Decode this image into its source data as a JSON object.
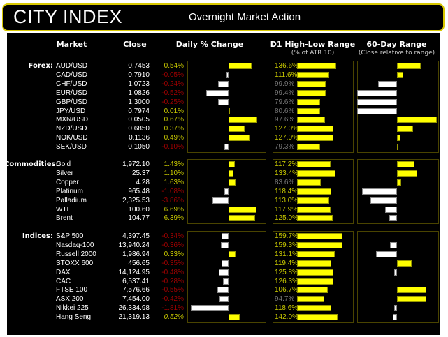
{
  "header": {
    "logo": "CITY INDEX",
    "title": "Overnight Market Action"
  },
  "columns": {
    "market": "Market",
    "close": "Close",
    "daily": "Daily % Change",
    "d1": "D1 High-Low Range",
    "d1_sub": "(% of ATR 10)",
    "range60": "60-Day Range",
    "range60_sub": "(Close relative to range)"
  },
  "colors": {
    "positive": "#c8c800",
    "negative": "#a00000",
    "bar_yellow": "#ffff00",
    "bar_white": "#ffffff",
    "atr_high": "#c8c800",
    "atr_low": "#777777"
  },
  "sections": [
    {
      "label": "Forex:",
      "rows": [
        {
          "market": "AUD/USD",
          "close": "0.7453",
          "pct": "0.54%",
          "v": 0.54,
          "atr": "136.6%",
          "a": 136.6,
          "r60": 0.59
        },
        {
          "market": "CAD/USD",
          "close": "0.7910",
          "pct": "-0.05%",
          "v": -0.05,
          "atr": "111.6%",
          "a": 111.6,
          "r60": 0.16
        },
        {
          "market": "CHF/USD",
          "close": "1.0723",
          "pct": "-0.24%",
          "v": -0.24,
          "atr": "99.9%",
          "a": 99.9,
          "r60": -0.47
        },
        {
          "market": "EUR/USD",
          "close": "1.0826",
          "pct": "-0.52%",
          "v": -0.52,
          "atr": "99.4%",
          "a": 99.4,
          "r60": -1.0
        },
        {
          "market": "GBP/USD",
          "close": "1.3000",
          "pct": "-0.25%",
          "v": -0.25,
          "atr": "79.6%",
          "a": 79.6,
          "r60": -1.0
        },
        {
          "market": "JPY/USD",
          "close": "0.7974",
          "pct": "0.01%",
          "v": 0.01,
          "atr": "80.6%",
          "a": 80.6,
          "r60": -1.0
        },
        {
          "market": "MXN/USD",
          "close": "0.0505",
          "pct": "0.67%",
          "v": 0.67,
          "atr": "97.6%",
          "a": 97.6,
          "r60": 1.0
        },
        {
          "market": "NZD/USD",
          "close": "0.6850",
          "pct": "0.37%",
          "v": 0.37,
          "atr": "127.0%",
          "a": 127.0,
          "r60": 0.41
        },
        {
          "market": "NOK/USD",
          "close": "0.1136",
          "pct": "0.49%",
          "v": 0.49,
          "atr": "127.0%",
          "a": 127.0,
          "r60": 0.09
        },
        {
          "market": "SEK/USD",
          "close": "0.1050",
          "pct": "-0.10%",
          "v": -0.1,
          "atr": "79.3%",
          "a": 79.3,
          "r60": 0.02
        }
      ]
    },
    {
      "label": "Commodities:",
      "rows": [
        {
          "market": "Gold",
          "close": "1,972.10",
          "pct": "1.43%",
          "v": 1.43,
          "atr": "117.2%",
          "a": 117.2,
          "r60": 0.44
        },
        {
          "market": "Silver",
          "close": "25.37",
          "pct": "1.10%",
          "v": 1.1,
          "atr": "133.4%",
          "a": 133.4,
          "r60": 0.5
        },
        {
          "market": "Copper",
          "close": "4.28",
          "pct": "1.63%",
          "v": 1.63,
          "atr": "83.6%",
          "a": 83.6,
          "r60": 0.1
        },
        {
          "market": "Platinum",
          "close": "965.48",
          "pct": "-1.08%",
          "v": -1.08,
          "atr": "118.4%",
          "a": 118.4,
          "r60": -0.87
        },
        {
          "market": "Palladium",
          "close": "2,325.53",
          "pct": "-3.86%",
          "v": -3.86,
          "atr": "113.0%",
          "a": 113.0,
          "r60": -0.66
        },
        {
          "market": "WTI",
          "close": "100.60",
          "pct": "6.69%",
          "v": 6.69,
          "atr": "117.9%",
          "a": 117.9,
          "r60": -0.3
        },
        {
          "market": "Brent",
          "close": "104.77",
          "pct": "6.39%",
          "v": 6.39,
          "atr": "125.0%",
          "a": 125.0,
          "r60": -0.19
        }
      ]
    },
    {
      "label": "Indices:",
      "rows": [
        {
          "market": "S&P 500",
          "close": "4,397.45",
          "pct": "-0.34%",
          "v": -0.34,
          "atr": "159.7%",
          "a": 159.7,
          "r60": 0
        },
        {
          "market": "Nasdaq-100",
          "close": "13,940.24",
          "pct": "-0.36%",
          "v": -0.36,
          "atr": "159.3%",
          "a": 159.3,
          "r60": -0.18
        },
        {
          "market": "Russell 2000",
          "close": "1,986.94",
          "pct": "0.33%",
          "v": 0.33,
          "atr": "131.1%",
          "a": 131.1,
          "r60": -0.52
        },
        {
          "market": "STOXX 600",
          "close": "456.65",
          "pct": "-0.35%",
          "v": -0.35,
          "atr": "119.4%",
          "a": 119.4,
          "r60": 0.36
        },
        {
          "market": "DAX",
          "close": "14,124.95",
          "pct": "-0.48%",
          "v": -0.48,
          "atr": "125.8%",
          "a": 125.8,
          "r60": -0.07
        },
        {
          "market": "CAC",
          "close": "6,537.41",
          "pct": "-0.28%",
          "v": -0.28,
          "atr": "126.3%",
          "a": 126.3,
          "r60": 0
        },
        {
          "market": "FTSE 100",
          "close": "7,576.66",
          "pct": "-0.55%",
          "v": -0.55,
          "atr": "106.7%",
          "a": 106.7,
          "r60": 0.73
        },
        {
          "market": "ASX 200",
          "close": "7,454.00",
          "pct": "-0.42%",
          "v": -0.42,
          "atr": "94.7%",
          "a": 94.7,
          "r60": 0.73
        },
        {
          "market": "Nikkei 225",
          "close": "26,334.98",
          "pct": "-1.81%",
          "v": -1.81,
          "atr": "118.6%",
          "a": 118.6,
          "r60": -0.07
        },
        {
          "market": "Hang Seng",
          "close": "21,319.13",
          "pct": "0.52%",
          "v": 0.52,
          "atr": "142.0%",
          "a": 142.0,
          "r60": -0.1,
          "italic": true
        }
      ]
    }
  ]
}
